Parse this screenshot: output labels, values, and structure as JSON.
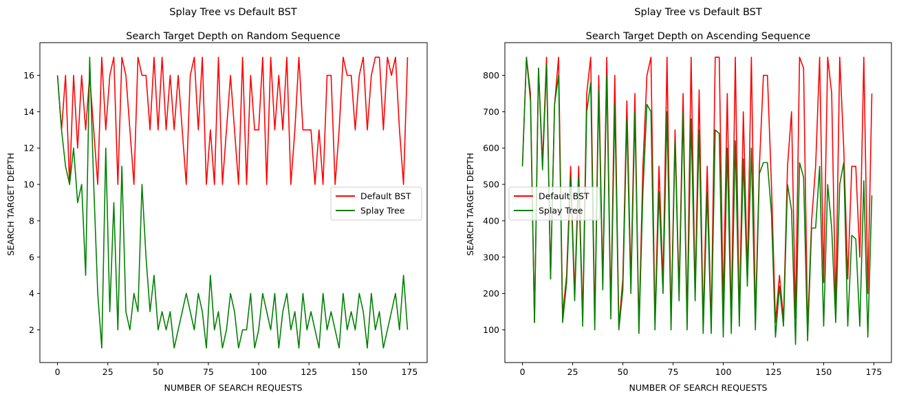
{
  "chart_data": [
    {
      "type": "line",
      "suptitle": "Splay Tree vs Default BST",
      "title": "Search Target Depth on Random Sequence",
      "xlabel": "NUMBER OF SEARCH REQUESTS",
      "ylabel": "SEARCH TARGET DEPTH",
      "xlim": [
        -8.75,
        183.75
      ],
      "ylim": [
        0.2,
        17.8
      ],
      "xticks": [
        0,
        25,
        50,
        75,
        100,
        125,
        150,
        175
      ],
      "yticks": [
        2,
        4,
        6,
        8,
        10,
        12,
        14,
        16
      ],
      "grid": false,
      "legend_position": "center-right",
      "x": [
        0,
        2,
        4,
        6,
        8,
        10,
        12,
        14,
        16,
        18,
        20,
        22,
        24,
        26,
        28,
        30,
        32,
        34,
        36,
        38,
        40,
        42,
        44,
        46,
        48,
        50,
        52,
        54,
        56,
        58,
        60,
        62,
        64,
        66,
        68,
        70,
        72,
        74,
        76,
        78,
        80,
        82,
        84,
        86,
        88,
        90,
        92,
        94,
        96,
        98,
        100,
        102,
        104,
        106,
        108,
        110,
        112,
        114,
        116,
        118,
        120,
        122,
        124,
        126,
        128,
        130,
        132,
        134,
        136,
        138,
        140,
        142,
        144,
        146,
        148,
        150,
        152,
        154,
        156,
        158,
        160,
        162,
        164,
        166,
        168,
        170,
        172,
        174
      ],
      "series": [
        {
          "name": "Default BST",
          "color": "#ff0000",
          "values": [
            16,
            13,
            16,
            10,
            16,
            12,
            16,
            13,
            16,
            13,
            10,
            17,
            13,
            16,
            17,
            10,
            17,
            16,
            13,
            10,
            17,
            16,
            16,
            13,
            17,
            13,
            17,
            13,
            16,
            13,
            16,
            13,
            10,
            16,
            17,
            13,
            17,
            10,
            13,
            10,
            17,
            10,
            13,
            16,
            13,
            10,
            17,
            10,
            16,
            13,
            13,
            17,
            10,
            17,
            13,
            16,
            13,
            17,
            10,
            13,
            17,
            13,
            13,
            13,
            10,
            13,
            10,
            16,
            16,
            10,
            13,
            17,
            16,
            16,
            13,
            16,
            17,
            13,
            16,
            17,
            17,
            13,
            17,
            16,
            17,
            13,
            10,
            17
          ]
        },
        {
          "name": "Splay Tree",
          "color": "#008000",
          "values": [
            16,
            13,
            11,
            10,
            12,
            9,
            10,
            5,
            17,
            10,
            4,
            1,
            12,
            3,
            9,
            2,
            11,
            3,
            2,
            4,
            3,
            10,
            6,
            3,
            5,
            2,
            3,
            2,
            3,
            1,
            2,
            3,
            4,
            3,
            2,
            4,
            3,
            1,
            5,
            2,
            3,
            1,
            2,
            4,
            3,
            1,
            2,
            2,
            4,
            1,
            2,
            4,
            3,
            2,
            4,
            1,
            3,
            4,
            2,
            3,
            1,
            4,
            2,
            3,
            2,
            1,
            4,
            2,
            3,
            2,
            1,
            4,
            2,
            3,
            2,
            4,
            3,
            1,
            4,
            2,
            3,
            1,
            2,
            3,
            4,
            2,
            5,
            2
          ]
        }
      ]
    },
    {
      "type": "line",
      "suptitle": "Splay Tree vs Default BST",
      "title": "Search Target Depth on Ascending Sequence",
      "xlabel": "NUMBER OF SEARCH REQUESTS",
      "ylabel": "SEARCH TARGET DEPTH",
      "xlim": [
        -8.75,
        183.75
      ],
      "ylim": [
        10,
        890
      ],
      "xticks": [
        0,
        25,
        50,
        75,
        100,
        125,
        150,
        175
      ],
      "yticks": [
        100,
        200,
        300,
        400,
        500,
        600,
        700,
        800
      ],
      "grid": false,
      "legend_position": "center-left",
      "x": [
        0,
        2,
        4,
        6,
        8,
        10,
        12,
        14,
        16,
        18,
        20,
        22,
        24,
        26,
        28,
        30,
        32,
        34,
        36,
        38,
        40,
        42,
        44,
        46,
        48,
        50,
        52,
        54,
        56,
        58,
        60,
        62,
        64,
        66,
        68,
        70,
        72,
        74,
        76,
        78,
        80,
        82,
        84,
        86,
        88,
        90,
        92,
        94,
        96,
        98,
        100,
        102,
        104,
        106,
        108,
        110,
        112,
        114,
        116,
        118,
        120,
        122,
        124,
        126,
        128,
        130,
        132,
        134,
        136,
        138,
        140,
        142,
        144,
        146,
        148,
        150,
        152,
        154,
        156,
        158,
        160,
        162,
        164,
        166,
        168,
        170,
        172,
        174
      ],
      "series": [
        {
          "name": "Default BST",
          "color": "#ff0000",
          "values": [
            550,
            850,
            750,
            120,
            820,
            560,
            850,
            240,
            720,
            850,
            140,
            250,
            550,
            200,
            550,
            130,
            750,
            850,
            120,
            800,
            230,
            850,
            150,
            800,
            110,
            240,
            730,
            230,
            750,
            100,
            550,
            800,
            850,
            120,
            550,
            230,
            850,
            120,
            650,
            200,
            750,
            120,
            850,
            200,
            760,
            120,
            550,
            110,
            850,
            850,
            160,
            750,
            120,
            850,
            130,
            700,
            250,
            850,
            130,
            550,
            800,
            800,
            500,
            120,
            250,
            130,
            550,
            700,
            130,
            850,
            820,
            100,
            400,
            550,
            850,
            230,
            850,
            750,
            150,
            850,
            600,
            240,
            550,
            550,
            300,
            850,
            200,
            750
          ]
        },
        {
          "name": "Splay Tree",
          "color": "#008000",
          "values": [
            550,
            850,
            730,
            120,
            820,
            540,
            830,
            240,
            720,
            800,
            120,
            230,
            520,
            180,
            520,
            110,
            700,
            780,
            100,
            760,
            210,
            800,
            130,
            720,
            100,
            210,
            680,
            200,
            700,
            90,
            480,
            720,
            700,
            100,
            480,
            200,
            700,
            100,
            620,
            180,
            700,
            100,
            680,
            180,
            650,
            90,
            480,
            90,
            650,
            640,
            80,
            600,
            90,
            620,
            110,
            570,
            220,
            600,
            100,
            530,
            560,
            560,
            420,
            80,
            220,
            110,
            500,
            430,
            60,
            560,
            520,
            70,
            380,
            380,
            550,
            110,
            500,
            380,
            120,
            500,
            560,
            110,
            360,
            350,
            110,
            510,
            80,
            470
          ]
        }
      ]
    }
  ]
}
